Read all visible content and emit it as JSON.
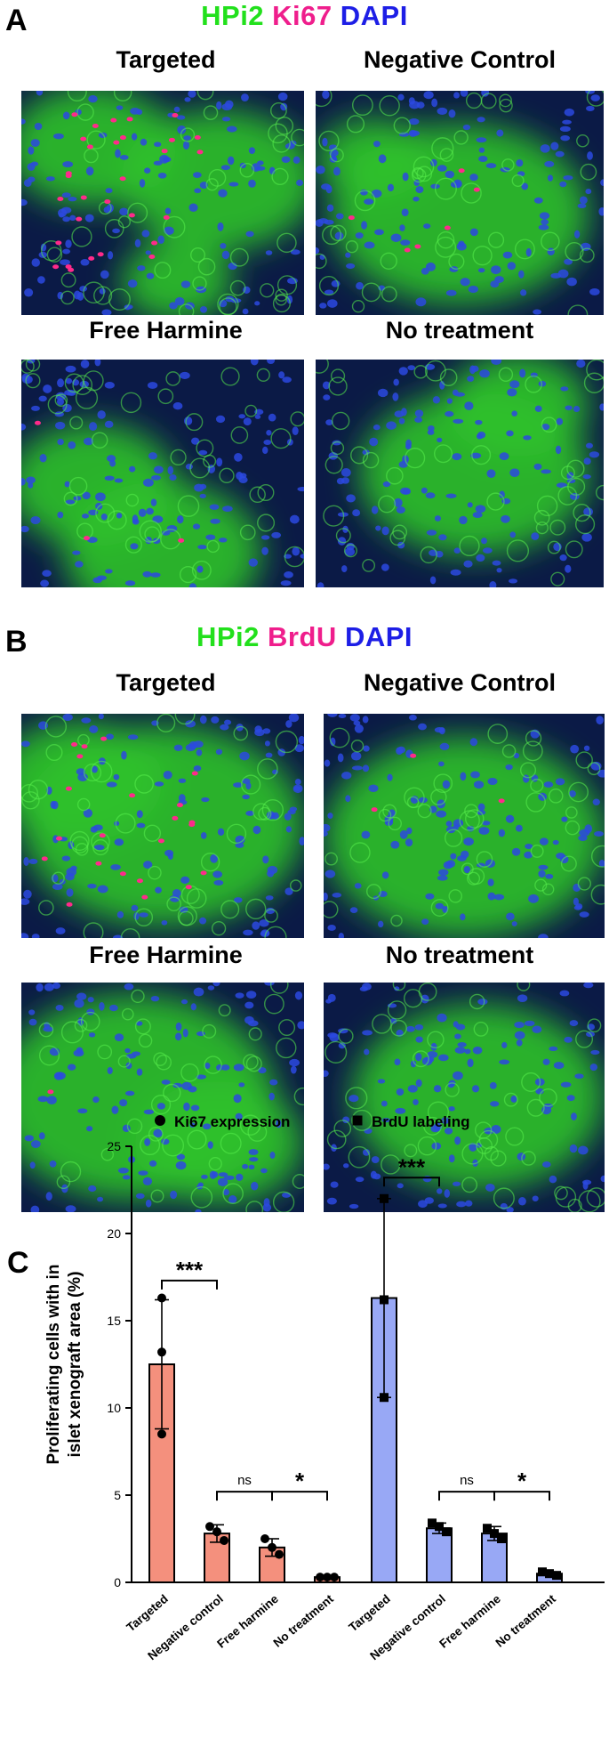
{
  "panels": [
    {
      "letter": "A",
      "stains": [
        {
          "text": "HPi2",
          "color": "#22e01c"
        },
        {
          "text": "Ki67",
          "color": "#ef1e8c"
        },
        {
          "text": "DAPI",
          "color": "#1d1ee6"
        }
      ],
      "images": [
        "Targeted",
        "Negative Control",
        "Free Harmine",
        "No treatment"
      ]
    },
    {
      "letter": "B",
      "stains": [
        {
          "text": "HPi2",
          "color": "#22e01c"
        },
        {
          "text": "BrdU",
          "color": "#ef1e8c"
        },
        {
          "text": "DAPI",
          "color": "#1d1ee6"
        }
      ],
      "images": [
        "Targeted",
        "Negative Control",
        "Free Harmine",
        "No treatment"
      ]
    }
  ],
  "chart_panel_letter": "C",
  "chart_data": {
    "type": "bar",
    "title": "",
    "ylabel": "Proliferating cells with in islet xenograft area (%)",
    "ylim": [
      0,
      25
    ],
    "yticks": [
      0,
      5,
      10,
      15,
      20,
      25
    ],
    "legend": [
      {
        "name": "Ki67 expression",
        "marker": "circle"
      },
      {
        "name": "BrdU labeling",
        "marker": "square"
      }
    ],
    "legend_position": "top",
    "groups": [
      {
        "name": "Ki67 expression",
        "marker": "circle",
        "fill": "#f4907d",
        "categories": [
          "Targeted",
          "Negative control",
          "Free harmine",
          "No treatment"
        ],
        "values": [
          12.5,
          2.8,
          2.0,
          0.3
        ],
        "errors": [
          3.7,
          0.5,
          0.5,
          0.05
        ],
        "points": [
          [
            16.3,
            13.2,
            8.5
          ],
          [
            3.2,
            2.9,
            2.4
          ],
          [
            2.5,
            2.0,
            1.6
          ],
          [
            0.3,
            0.3,
            0.3
          ]
        ]
      },
      {
        "name": "BrdU labeling",
        "marker": "square",
        "fill": "#98a8f5",
        "categories": [
          "Targeted",
          "Negative control",
          "Free harmine",
          "No treatment"
        ],
        "values": [
          16.3,
          3.1,
          2.8,
          0.5
        ],
        "errors": [
          5.7,
          0.3,
          0.4,
          0.1
        ],
        "points": [
          [
            22.0,
            16.2,
            10.6
          ],
          [
            3.4,
            3.2,
            2.9
          ],
          [
            3.1,
            2.8,
            2.5
          ],
          [
            0.6,
            0.5,
            0.4
          ]
        ]
      }
    ],
    "significance": [
      {
        "group": 0,
        "from": 0,
        "to": 1,
        "y": 17.3,
        "label": "***"
      },
      {
        "group": 0,
        "from": 1,
        "to": 2,
        "y": 5.2,
        "label": "ns"
      },
      {
        "group": 0,
        "from": 2,
        "to": 3,
        "y": 5.2,
        "label": "*"
      },
      {
        "group": 1,
        "from": 0,
        "to": 1,
        "y": 23.2,
        "label": "***"
      },
      {
        "group": 1,
        "from": 1,
        "to": 2,
        "y": 5.2,
        "label": "ns"
      },
      {
        "group": 1,
        "from": 2,
        "to": 3,
        "y": 5.2,
        "label": "*"
      }
    ]
  }
}
